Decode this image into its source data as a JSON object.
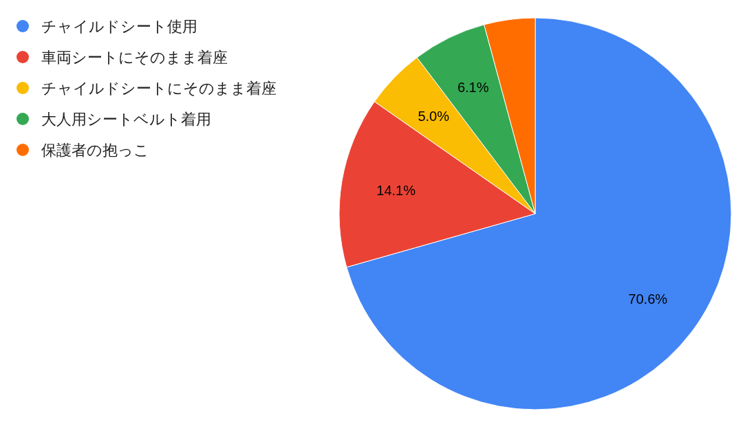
{
  "chart_data": {
    "type": "pie",
    "categories": [
      "チャイルドシート使用",
      "車両シートにそのまま着座",
      "チャイルドシートにそのまま着座",
      "大人用シートベルト着用",
      "保護者の抱っこ"
    ],
    "values": [
      70.6,
      14.1,
      5.0,
      6.1,
      4.2
    ],
    "colors": [
      "#4285f4",
      "#ea4335",
      "#fbbc04",
      "#34a853",
      "#ff6d01"
    ],
    "value_labels": [
      "70.6%",
      "14.1%",
      "5.0%",
      "6.1%",
      null
    ],
    "legend": "top left"
  }
}
